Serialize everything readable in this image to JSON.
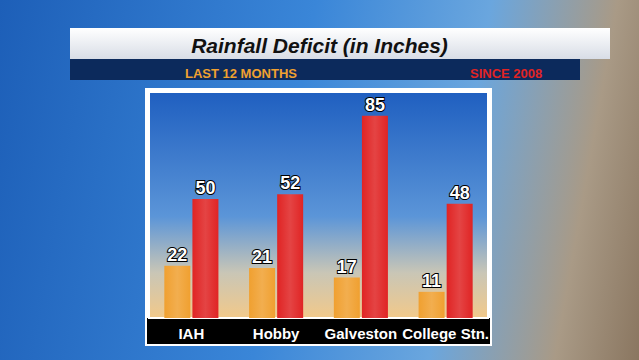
{
  "chart_data": {
    "type": "bar",
    "title": "Rainfall Deficit (in Inches)",
    "categories": [
      "IAH",
      "Hobby",
      "Galveston",
      "College Stn."
    ],
    "series": [
      {
        "name": "LAST 12 MONTHS",
        "color": "#f0a030",
        "values": [
          22,
          21,
          17,
          11
        ]
      },
      {
        "name": "SINCE 2008",
        "color": "#e02424",
        "values": [
          50,
          52,
          85,
          48
        ]
      }
    ],
    "ylim": [
      0,
      95
    ],
    "grid": false,
    "data_labels": true,
    "tick_labels": "x",
    "legend": "top"
  }
}
